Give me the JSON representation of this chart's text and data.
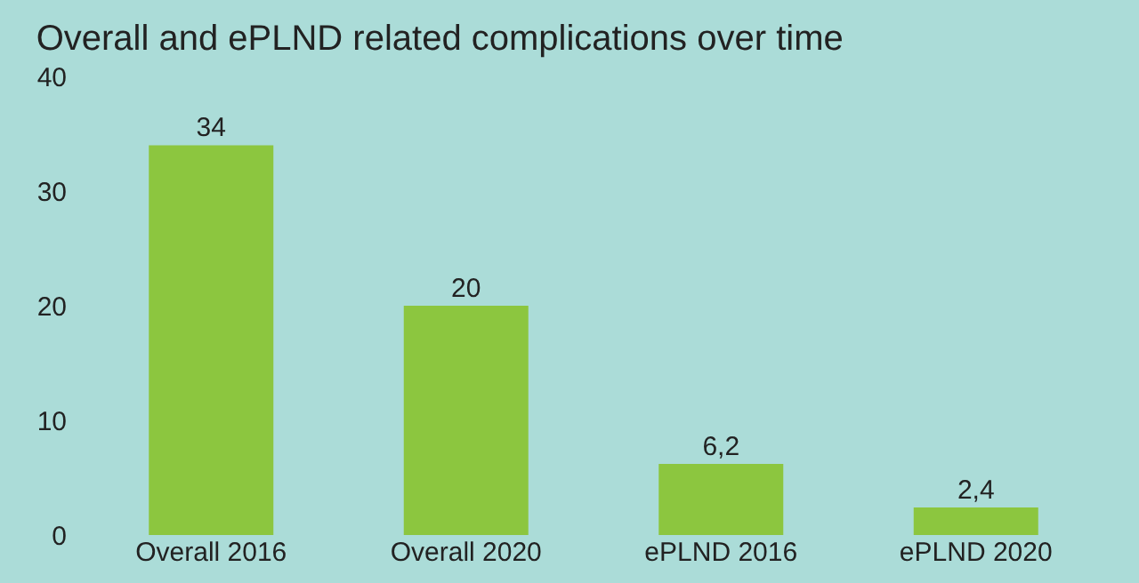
{
  "chart_data": {
    "type": "bar",
    "title": "Overall and ePLND related complications over time",
    "categories": [
      "Overall 2016",
      "Overall 2020",
      "ePLND 2016",
      "ePLND 2020"
    ],
    "values": [
      34,
      20,
      6.2,
      2.4
    ],
    "value_labels": [
      "34",
      "20",
      "6,2",
      "2,4"
    ],
    "color": "#8cc63f",
    "ylim": [
      0,
      40
    ],
    "yticks": [
      0,
      10,
      20,
      30,
      40
    ],
    "grid": false
  }
}
